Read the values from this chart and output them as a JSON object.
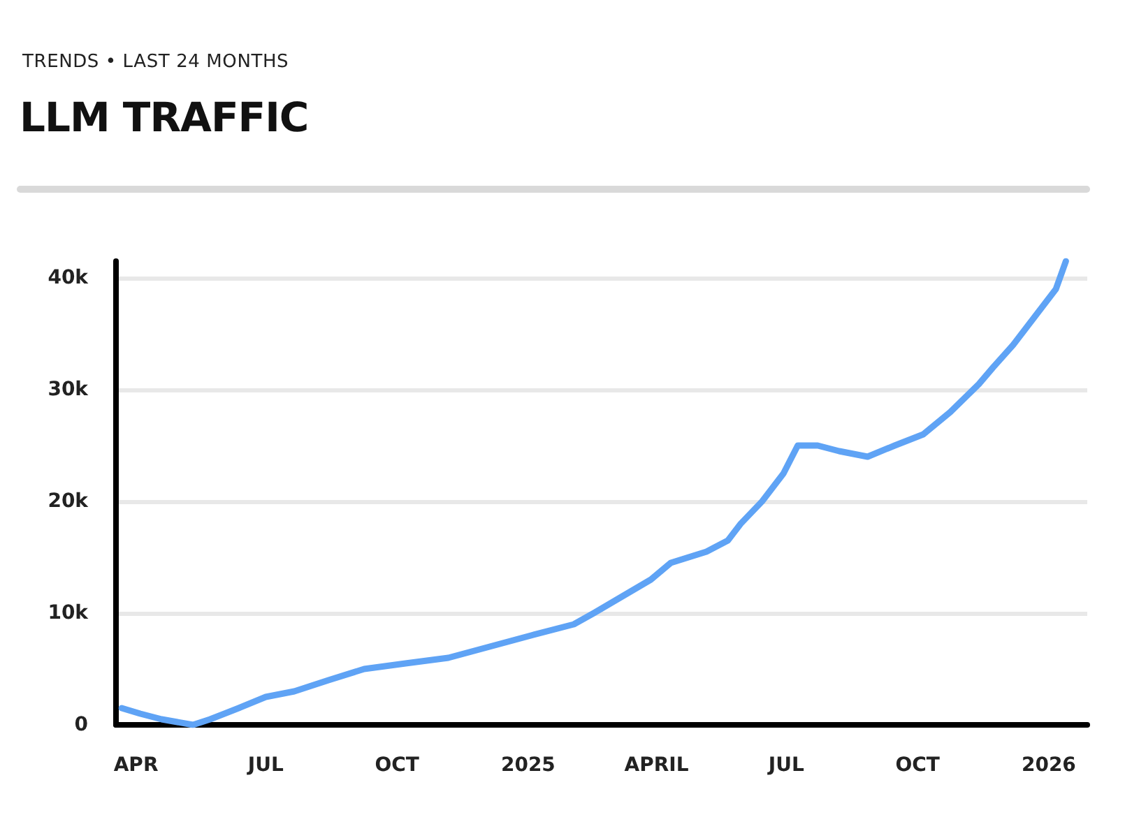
{
  "chart_data": {
    "type": "line",
    "title": "LLM TRAFFIC",
    "subtitle": "TRENDS • LAST 24 MONTHS",
    "x": [
      "2024-03-22",
      "2024-04-04",
      "2024-04-19",
      "2024-05-11",
      "2024-05-23",
      "2024-06-12",
      "2024-07-01",
      "2024-07-21",
      "2024-08-14",
      "2024-09-08",
      "2024-10-07",
      "2024-11-06",
      "2024-12-05",
      "2025-01-03",
      "2025-02-02",
      "2025-02-16",
      "2025-03-08",
      "2025-03-28",
      "2025-04-11",
      "2025-05-06",
      "2025-05-21",
      "2025-05-30",
      "2025-06-14",
      "2025-06-29",
      "2025-07-09",
      "2025-07-23",
      "2025-08-07",
      "2025-08-27",
      "2025-09-15",
      "2025-10-05",
      "2025-10-24",
      "2025-11-13",
      "2025-11-23",
      "2025-12-07",
      "2025-12-22",
      "2026-01-06",
      "2026-01-13"
    ],
    "series": [
      {
        "color": "#5fa3f5",
        "values": [
          1500,
          1000,
          500,
          0,
          500,
          1500,
          2500,
          3000,
          4000,
          5000,
          5500,
          6000,
          7000,
          8000,
          9000,
          10000,
          11500,
          13000,
          14500,
          15500,
          16500,
          18000,
          20000,
          22500,
          25000,
          25000,
          24500,
          24000,
          25000,
          26000,
          28000,
          30500,
          32000,
          34000,
          36500,
          39000,
          41500
        ]
      }
    ],
    "xlim": [
      "2024-03-18",
      "2026-01-28"
    ],
    "xticks": [
      {
        "value": "2024-04-01",
        "label": "APR"
      },
      {
        "value": "2024-07-01",
        "label": "JUL"
      },
      {
        "value": "2024-10-01",
        "label": "OCT"
      },
      {
        "value": "2025-01-01",
        "label": "2025"
      },
      {
        "value": "2025-04-01",
        "label": "APRIL"
      },
      {
        "value": "2025-07-01",
        "label": "JUL"
      },
      {
        "value": "2025-10-01",
        "label": "OCT"
      },
      {
        "value": "2026-01-01",
        "label": "2026"
      }
    ],
    "ylim": [
      0,
      41500
    ],
    "yticks": [
      0,
      {
        "value": 10000,
        "label": "10k"
      },
      {
        "value": 20000,
        "label": "20k"
      },
      {
        "value": 30000,
        "label": "30k"
      },
      {
        "value": 40000,
        "label": "40k"
      }
    ],
    "grid": "y",
    "marker": "none",
    "line_style": "solid"
  }
}
